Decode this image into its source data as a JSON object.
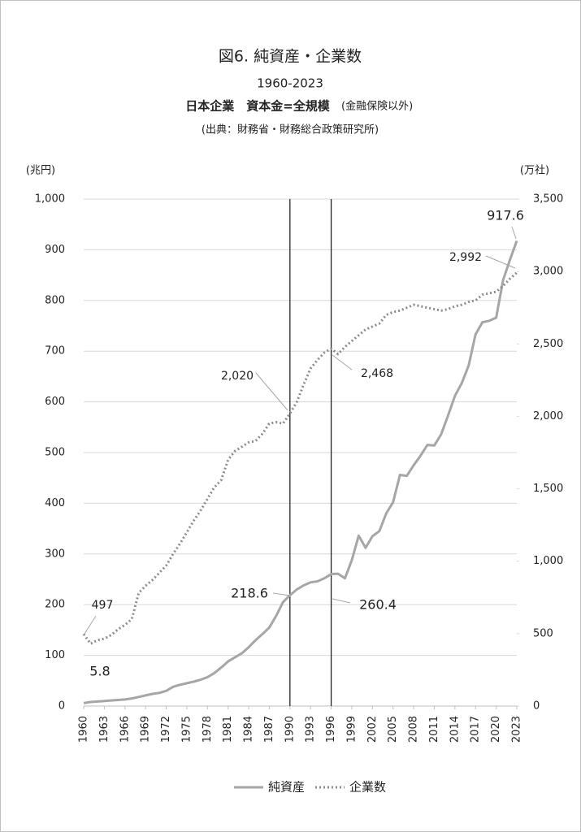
{
  "chart_data": {
    "type": "line",
    "title": "図6.  純資産・企業数",
    "subtitle": "1960-2023",
    "subtitle2": "日本企業　資本金=全規模",
    "subtitle2_note": "(金融保険以外)",
    "source": "(出典：財務省・財務総合政策研究所)",
    "y_label": "(兆円)",
    "y2_label": "(万社)",
    "x": [
      1960,
      1961,
      1962,
      1963,
      1964,
      1965,
      1966,
      1967,
      1968,
      1969,
      1970,
      1971,
      1972,
      1973,
      1974,
      1975,
      1976,
      1977,
      1978,
      1979,
      1980,
      1981,
      1982,
      1983,
      1984,
      1985,
      1986,
      1987,
      1988,
      1989,
      1990,
      1991,
      1992,
      1993,
      1994,
      1995,
      1996,
      1997,
      1998,
      1999,
      2000,
      2001,
      2002,
      2003,
      2004,
      2005,
      2006,
      2007,
      2008,
      2009,
      2010,
      2011,
      2012,
      2013,
      2014,
      2015,
      2016,
      2017,
      2018,
      2019,
      2020,
      2021,
      2022,
      2023
    ],
    "xlim": [
      1960,
      2023
    ],
    "xticks": [
      1960,
      1963,
      1966,
      1969,
      1972,
      1975,
      1978,
      1981,
      1984,
      1987,
      1990,
      1993,
      1996,
      1999,
      2002,
      2005,
      2008,
      2011,
      2014,
      2017,
      2020,
      2023
    ],
    "ylim": [
      0,
      1000
    ],
    "yticks": [
      0,
      100,
      200,
      300,
      400,
      500,
      600,
      700,
      800,
      900,
      {
        "value": 1000,
        "label": "1,000"
      }
    ],
    "y2lim": [
      0,
      3500
    ],
    "y2ticks": [
      0,
      500,
      {
        "value": 1000,
        "label": "1,000"
      },
      {
        "value": 1500,
        "label": "1,500"
      },
      {
        "value": 2000,
        "label": "2,000"
      },
      {
        "value": 2500,
        "label": "2,500"
      },
      {
        "value": 3000,
        "label": "3,000"
      },
      {
        "value": 3500,
        "label": "3,500"
      }
    ],
    "grid": true,
    "reference_lines": [
      1990,
      1996
    ],
    "series": [
      {
        "name": "純資産",
        "color": "#a6a6a6",
        "style": "solid",
        "values": [
          5.8,
          8,
          9,
          10,
          11,
          12,
          13,
          15,
          18,
          21,
          24,
          26,
          30,
          38,
          42,
          45,
          48,
          52,
          57,
          65,
          76,
          88,
          96,
          104,
          116,
          130,
          142,
          155,
          178,
          205,
          218.6,
          230,
          238,
          244,
          246,
          252,
          260.4,
          261,
          252,
          288,
          336,
          312,
          335,
          345,
          380,
          402,
          456,
          454,
          475,
          494,
          515,
          514,
          536,
          573,
          612,
          637,
          672,
          733,
          757,
          760,
          766,
          840,
          880,
          917.6
        ],
        "value_labels": [
          "5.8",
          null,
          null,
          null,
          null,
          null,
          null,
          null,
          null,
          null,
          null,
          null,
          null,
          null,
          null,
          null,
          null,
          null,
          null,
          null,
          null,
          null,
          null,
          null,
          null,
          null,
          null,
          null,
          null,
          null,
          "218.6",
          null,
          null,
          null,
          null,
          null,
          "260.4",
          null,
          null,
          null,
          null,
          null,
          null,
          null,
          null,
          null,
          null,
          null,
          null,
          null,
          null,
          null,
          null,
          null,
          null,
          null,
          null,
          null,
          null,
          null,
          null,
          null,
          null,
          "917.6"
        ]
      },
      {
        "name": "企業数",
        "color": "#8c8c8c",
        "style": "dotted",
        "axis": "y2",
        "values": [
          497,
          430,
          455,
          465,
          490,
          530,
          560,
          600,
          780,
          830,
          870,
          920,
          970,
          1050,
          1120,
          1200,
          1280,
          1350,
          1430,
          1510,
          1560,
          1700,
          1760,
          1790,
          1820,
          1830,
          1880,
          1950,
          1960,
          1950,
          2020,
          2100,
          2220,
          2330,
          2390,
          2440,
          2468,
          2430,
          2480,
          2520,
          2560,
          2600,
          2620,
          2640,
          2700,
          2720,
          2730,
          2750,
          2770,
          2760,
          2750,
          2740,
          2730,
          2740,
          2760,
          2770,
          2790,
          2800,
          2840,
          2850,
          2860,
          2900,
          2950,
          2992
        ],
        "value_labels": [
          "497",
          null,
          null,
          null,
          null,
          null,
          null,
          null,
          null,
          null,
          null,
          null,
          null,
          null,
          null,
          null,
          null,
          null,
          null,
          null,
          null,
          null,
          null,
          null,
          null,
          null,
          null,
          null,
          null,
          null,
          "2,020",
          null,
          null,
          null,
          null,
          null,
          "2,468",
          null,
          null,
          null,
          null,
          null,
          null,
          null,
          null,
          null,
          null,
          null,
          null,
          null,
          null,
          null,
          null,
          null,
          null,
          null,
          null,
          null,
          null,
          null,
          null,
          null,
          null,
          "2,992"
        ]
      }
    ]
  }
}
